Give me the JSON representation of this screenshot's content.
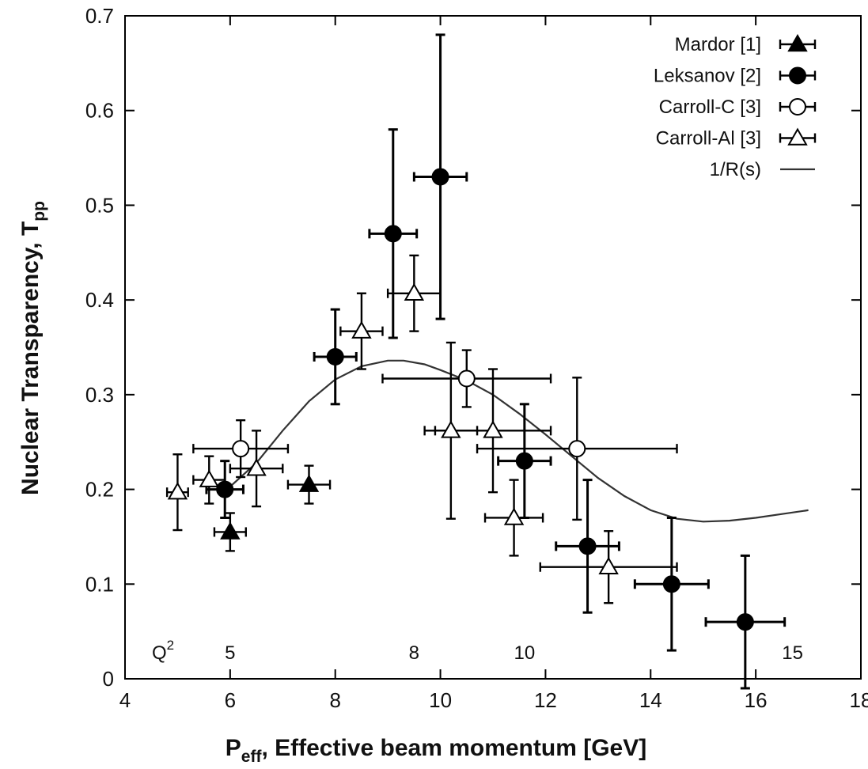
{
  "chart_data": {
    "type": "scatter",
    "title": "",
    "xlabel": "P",
    "xlabel_sub": "eff",
    "xlabel_rest": ", Effective beam momentum [GeV]",
    "ylabel": "Nuclear Transparency, T",
    "ylabel_sub": "pp",
    "xlim": [
      4,
      18
    ],
    "ylim": [
      0,
      0.7
    ],
    "x_ticks": [
      4,
      6,
      8,
      10,
      12,
      14,
      16,
      18
    ],
    "y_ticks": [
      0,
      0.1,
      0.2,
      0.3,
      0.4,
      0.5,
      0.6,
      0.7
    ],
    "x_tick_labels": [
      "4",
      "6",
      "8",
      "10",
      "12",
      "14",
      "16",
      "18"
    ],
    "y_tick_labels": [
      "0",
      "0.1",
      "0.2",
      "0.3",
      "0.4",
      "0.5",
      "0.6",
      "0.7"
    ],
    "grid": false,
    "legend_position": "top-right",
    "q2_row": {
      "label": "Q",
      "label_sup": "2",
      "values": [
        {
          "text": "5",
          "x": 6.0
        },
        {
          "text": "8",
          "x": 9.5
        },
        {
          "text": "10",
          "x": 11.6
        },
        {
          "text": "15",
          "x": 16.7
        }
      ]
    },
    "series": [
      {
        "name": "Mardor [1]",
        "marker": "triangle-filled",
        "points": [
          {
            "x": 6.0,
            "y": 0.155,
            "xerr": 0.3,
            "yerr": 0.02
          },
          {
            "x": 7.5,
            "y": 0.205,
            "xerr": 0.4,
            "yerr": 0.02
          }
        ]
      },
      {
        "name": "Leksanov [2]",
        "marker": "circle-filled",
        "points": [
          {
            "x": 5.9,
            "y": 0.2,
            "xerr": 0.35,
            "yerr": 0.03
          },
          {
            "x": 8.0,
            "y": 0.34,
            "xerr": 0.4,
            "yerr": 0.05
          },
          {
            "x": 9.1,
            "y": 0.47,
            "xerr": 0.45,
            "yerr": 0.11
          },
          {
            "x": 10.0,
            "y": 0.53,
            "xerr": 0.5,
            "yerr": 0.15
          },
          {
            "x": 11.6,
            "y": 0.23,
            "xerr": 0.5,
            "yerr": 0.06
          },
          {
            "x": 12.8,
            "y": 0.14,
            "xerr": 0.6,
            "yerr": 0.07
          },
          {
            "x": 14.4,
            "y": 0.1,
            "xerr": 0.7,
            "yerr": 0.07
          },
          {
            "x": 15.8,
            "y": 0.06,
            "xerr": 0.75,
            "yerr": 0.07
          }
        ]
      },
      {
        "name": "Carroll-C [3]",
        "marker": "circle-open",
        "points": [
          {
            "x": 6.2,
            "y": 0.243,
            "xerr": 0.9,
            "yerr": 0.03
          },
          {
            "x": 10.5,
            "y": 0.317,
            "xerr": 1.6,
            "yerr": 0.03
          },
          {
            "x": 12.6,
            "y": 0.243,
            "xerr": 1.9,
            "yerr": 0.075
          }
        ]
      },
      {
        "name": "Carroll-Al [3]",
        "marker": "triangle-open",
        "points": [
          {
            "x": 5.0,
            "y": 0.197,
            "xerr": 0.2,
            "yerr": 0.04
          },
          {
            "x": 5.6,
            "y": 0.21,
            "xerr": 0.3,
            "yerr": 0.025
          },
          {
            "x": 6.5,
            "y": 0.222,
            "xerr": 0.5,
            "yerr": 0.04
          },
          {
            "x": 8.5,
            "y": 0.367,
            "xerr": 0.4,
            "yerr": 0.04
          },
          {
            "x": 9.5,
            "y": 0.407,
            "xerr": 0.5,
            "yerr": 0.04
          },
          {
            "x": 10.2,
            "y": 0.262,
            "xerr": 0.5,
            "yerr": 0.093
          },
          {
            "x": 11.0,
            "y": 0.262,
            "xerr": 1.1,
            "yerr": 0.065
          },
          {
            "x": 11.4,
            "y": 0.17,
            "xerr": 0.55,
            "yerr": 0.04
          },
          {
            "x": 13.2,
            "y": 0.118,
            "xerr": 1.3,
            "yerr": 0.038
          }
        ]
      },
      {
        "name": "1/R(s)",
        "marker": "line",
        "points": [
          {
            "x": 6.0,
            "y": 0.203
          },
          {
            "x": 6.5,
            "y": 0.228
          },
          {
            "x": 7.0,
            "y": 0.262
          },
          {
            "x": 7.5,
            "y": 0.293
          },
          {
            "x": 8.0,
            "y": 0.316
          },
          {
            "x": 8.5,
            "y": 0.33
          },
          {
            "x": 9.0,
            "y": 0.336
          },
          {
            "x": 9.3,
            "y": 0.336
          },
          {
            "x": 9.7,
            "y": 0.332
          },
          {
            "x": 10.0,
            "y": 0.326
          },
          {
            "x": 10.5,
            "y": 0.315
          },
          {
            "x": 11.0,
            "y": 0.3
          },
          {
            "x": 11.5,
            "y": 0.28
          },
          {
            "x": 12.0,
            "y": 0.258
          },
          {
            "x": 12.5,
            "y": 0.235
          },
          {
            "x": 13.0,
            "y": 0.212
          },
          {
            "x": 13.5,
            "y": 0.193
          },
          {
            "x": 14.0,
            "y": 0.178
          },
          {
            "x": 14.5,
            "y": 0.169
          },
          {
            "x": 15.0,
            "y": 0.166
          },
          {
            "x": 15.5,
            "y": 0.167
          },
          {
            "x": 16.0,
            "y": 0.17
          },
          {
            "x": 16.5,
            "y": 0.174
          },
          {
            "x": 17.0,
            "y": 0.178
          }
        ]
      }
    ]
  }
}
